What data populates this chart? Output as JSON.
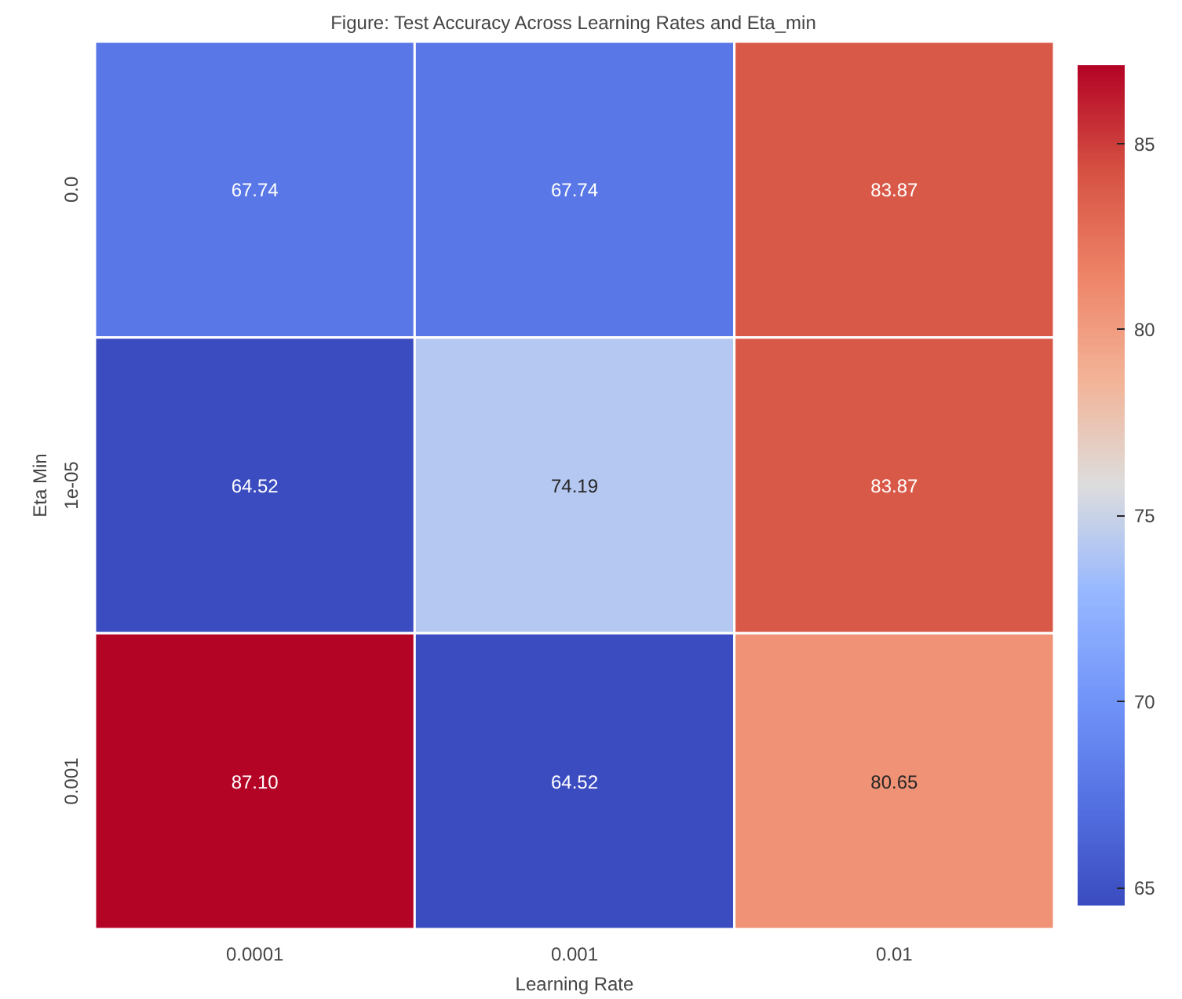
{
  "chart_data": {
    "type": "heatmap",
    "title": "Figure: Test Accuracy Across Learning Rates and Eta_min",
    "xlabel": "Learning Rate",
    "ylabel": "Eta Min",
    "categories": [
      "0.0001",
      "0.001",
      "0.01"
    ],
    "y_categories": [
      "0.0",
      "1e-05",
      "0.001"
    ],
    "cells": [
      [
        67.74,
        67.74,
        83.87
      ],
      [
        64.52,
        74.19,
        83.87
      ],
      [
        87.1,
        64.52,
        80.65
      ]
    ],
    "cell_labels": [
      [
        "67.74",
        "67.74",
        "83.87"
      ],
      [
        "64.52",
        "74.19",
        "83.87"
      ],
      [
        "87.10",
        "64.52",
        "80.65"
      ]
    ],
    "clim": [
      64.52,
      87.1
    ],
    "cticks": [
      65,
      70,
      75,
      80,
      85
    ]
  }
}
